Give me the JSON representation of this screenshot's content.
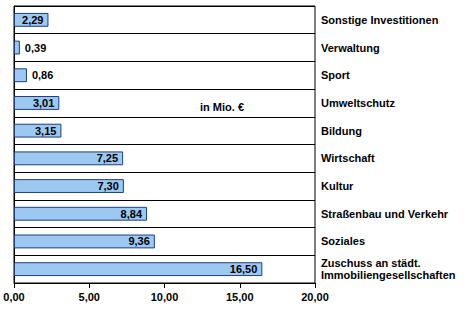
{
  "chart_data": {
    "type": "bar",
    "orientation": "horizontal",
    "annotations": [
      "in Mio. €"
    ],
    "categories": [
      "Sonstige Investitionen",
      "Verwaltung",
      "Sport",
      "Umweltschutz",
      "Bildung",
      "Wirtschaft",
      "Kultur",
      "Straßenbau und Verkehr",
      "Soziales",
      "Zuschuss an städt. Immobiliengesellschaften"
    ],
    "values": [
      2.29,
      0.39,
      0.86,
      3.01,
      3.15,
      7.25,
      7.3,
      8.84,
      9.36,
      16.5
    ],
    "value_labels": [
      "2,29",
      "0,39",
      "0,86",
      "3,01",
      "3,15",
      "7,25",
      "7,30",
      "8,84",
      "9,36",
      "16,50"
    ],
    "data_labels": true,
    "color": "#9cc8f2",
    "xlim": [
      0,
      20
    ],
    "xticks": [
      {
        "value": 0,
        "label": "0,00"
      },
      {
        "value": 5,
        "label": "5,00"
      },
      {
        "value": 10,
        "label": "10,00"
      },
      {
        "value": 15,
        "label": "15,00"
      },
      {
        "value": 20,
        "label": "20,00"
      }
    ],
    "grid": true
  }
}
